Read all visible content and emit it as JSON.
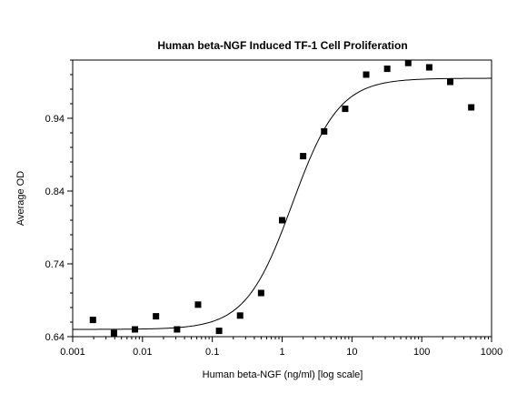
{
  "chart_data": {
    "type": "scatter",
    "title": "Human beta-NGF Induced TF-1 Cell Proliferation",
    "xlabel": "Human beta-NGF (ng/ml) [log scale]",
    "ylabel": "Average OD",
    "x_scale": "log",
    "xlim": [
      0.001,
      1000
    ],
    "ylim": [
      0.64,
      1.02
    ],
    "x_ticks": [
      0.001,
      0.01,
      0.1,
      1,
      10,
      100,
      1000
    ],
    "x_tick_labels": [
      "0.001",
      "0.01",
      "0.1",
      "1",
      "10",
      "100",
      "1000"
    ],
    "y_ticks": [
      0.64,
      0.74,
      0.84,
      0.94
    ],
    "y_tick_labels": [
      "0.64",
      "0.74",
      "0.84",
      "0.94"
    ],
    "grid": false,
    "series": [
      {
        "type": "scatter",
        "marker": "square",
        "x": [
          0.00195,
          0.0039,
          0.0078,
          0.0156,
          0.03125,
          0.0625,
          0.125,
          0.25,
          0.5,
          1,
          2,
          4,
          8,
          16,
          32,
          64,
          128,
          256,
          512
        ],
        "y": [
          0.663,
          0.645,
          0.65,
          0.668,
          0.65,
          0.684,
          0.648,
          0.669,
          0.7,
          0.8,
          0.888,
          0.922,
          0.953,
          1.0,
          1.008,
          1.016,
          1.01,
          0.99,
          0.955
        ]
      },
      {
        "type": "line",
        "fit": "four-parameter logistic",
        "bottom": 0.65,
        "top": 0.995,
        "ec50": 1.4,
        "hill": 1.3
      }
    ]
  }
}
